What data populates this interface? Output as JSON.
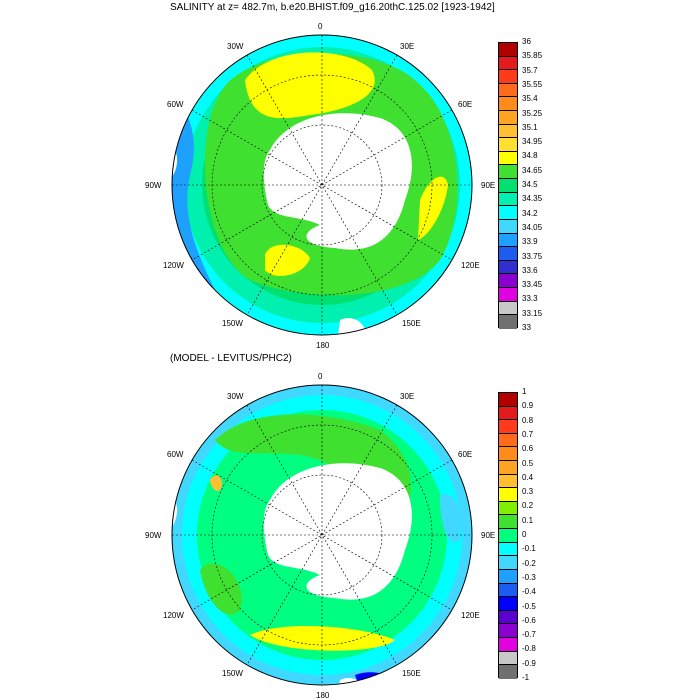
{
  "top_panel": {
    "title": "SALINITY at z= 482.7m, b.e20.BHIST.f09_g16.20thC.125.02 [1923-1942]",
    "colorbar": {
      "labels": [
        "36",
        "35.85",
        "35.7",
        "35.55",
        "35.4",
        "35.25",
        "35.1",
        "34.95",
        "34.8",
        "34.65",
        "34.5",
        "34.35",
        "34.2",
        "34.05",
        "33.9",
        "33.75",
        "33.6",
        "33.45",
        "33.3",
        "33.15",
        "33"
      ],
      "colors": [
        "#b00000",
        "#e41a1c",
        "#ff3b1c",
        "#ff6a1c",
        "#ff8c1a",
        "#ffa324",
        "#ffbf30",
        "#ffe030",
        "#ffff00",
        "#40e030",
        "#00e070",
        "#00f0b0",
        "#00ffff",
        "#40d8ff",
        "#1ea0ff",
        "#1c5cf0",
        "#3030d0",
        "#8b00d0",
        "#e000e0",
        "#c8c8c8",
        "#707070"
      ]
    },
    "lon_labels": {
      "n": "0",
      "nne": "30E",
      "ene": "60E",
      "e": "90E",
      "ese": "120E",
      "sse": "150E",
      "s": "180",
      "ssw": "150W",
      "wsw": "120W",
      "w": "90W",
      "wnw": "60W",
      "nnw": "30W"
    }
  },
  "bottom_panel": {
    "title": "(MODEL - LEVITUS/PHC2)",
    "colorbar": {
      "labels": [
        "1",
        "0.9",
        "0.8",
        "0.7",
        "0.6",
        "0.5",
        "0.4",
        "0.3",
        "0.2",
        "0.1",
        "0",
        "-0.1",
        "-0.2",
        "-0.3",
        "-0.4",
        "-0.5",
        "-0.6",
        "-0.7",
        "-0.8",
        "-0.9",
        "-1"
      ],
      "colors": [
        "#b00000",
        "#e41a1c",
        "#ff3b1c",
        "#ff6a1c",
        "#ff8c1a",
        "#ffa324",
        "#ffbf30",
        "#ffff00",
        "#80f000",
        "#40e030",
        "#00ff80",
        "#00ffff",
        "#40d8ff",
        "#1ea0ff",
        "#1c5cf0",
        "#0000ff",
        "#5a00d0",
        "#8b00d0",
        "#e000e0",
        "#c8c8c8",
        "#707070"
      ]
    },
    "lon_labels": {
      "n": "0",
      "nne": "30E",
      "ene": "60E",
      "e": "90E",
      "ese": "120E",
      "sse": "150E",
      "s": "180",
      "ssw": "150W",
      "wsw": "120W",
      "w": "90W",
      "wnw": "60W",
      "nnw": "30W"
    }
  }
}
